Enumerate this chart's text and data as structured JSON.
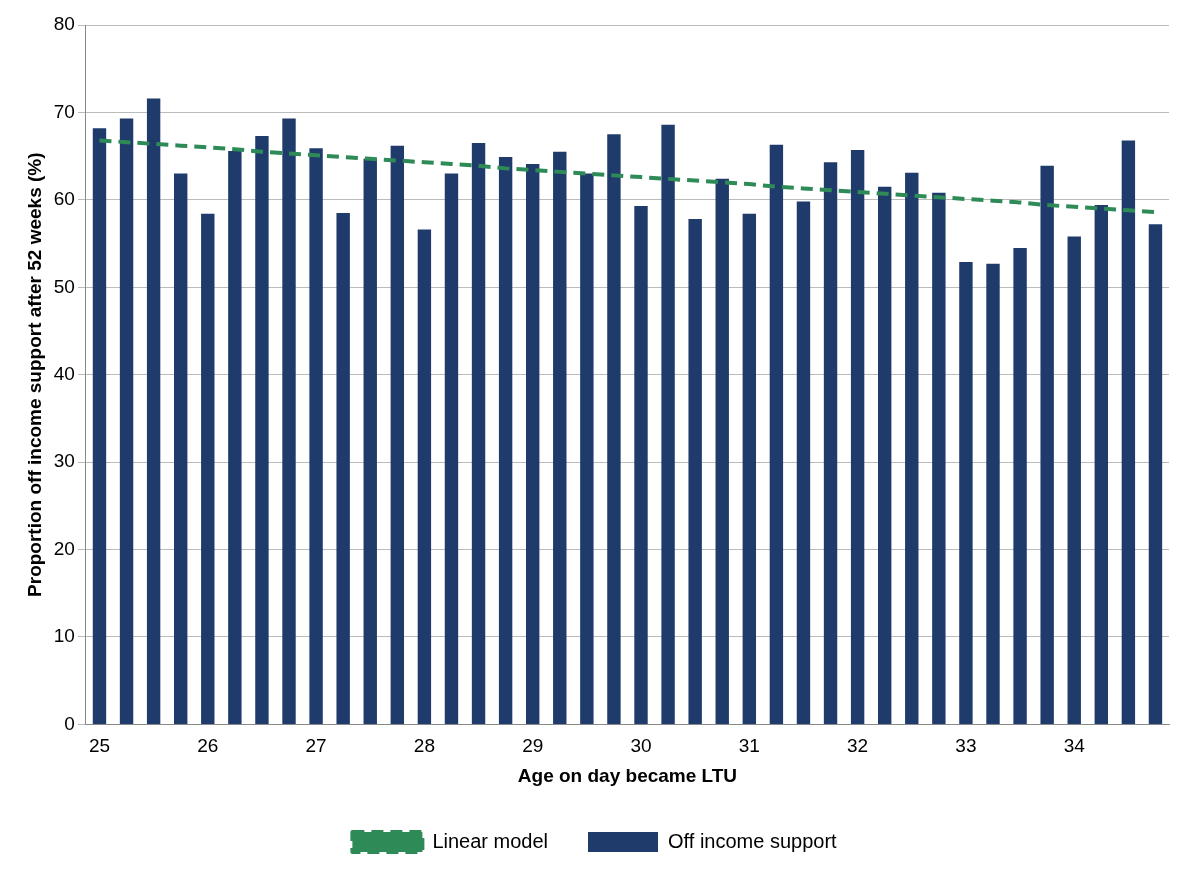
{
  "chart_data": {
    "type": "bar",
    "xlabel": "Age on day became LTU",
    "ylabel": "Proportion off income support after 52 weeks (%)",
    "categories": [
      "25",
      null,
      null,
      null,
      "26",
      null,
      null,
      null,
      "27",
      null,
      null,
      null,
      "28",
      null,
      null,
      null,
      "29",
      null,
      null,
      null,
      "30",
      null,
      null,
      null,
      "31",
      null,
      null,
      null,
      "32",
      null,
      null,
      null,
      "33",
      null,
      null,
      null,
      "34",
      null,
      null,
      null
    ],
    "series": [
      {
        "name": "Off income support",
        "color": "#1f3b6b",
        "values": [
          68.2,
          69.3,
          71.6,
          63.0,
          58.4,
          65.6,
          67.3,
          69.3,
          65.9,
          58.5,
          64.7,
          66.2,
          56.6,
          63.0,
          66.5,
          64.9,
          64.1,
          65.5,
          63.0,
          67.5,
          59.3,
          68.6,
          57.8,
          62.4,
          58.4,
          66.3,
          59.8,
          64.3,
          65.7,
          61.5,
          63.1,
          60.8,
          52.9,
          52.7,
          54.5,
          63.9,
          55.8,
          59.4,
          66.8,
          57.2
        ]
      },
      {
        "name": "Linear model",
        "type": "line",
        "color": "#2e8b57",
        "line_style": "dashed",
        "values": [
          66.8,
          66.6,
          66.4,
          66.2,
          66.0,
          65.8,
          65.5,
          65.3,
          65.1,
          64.9,
          64.7,
          64.5,
          64.3,
          64.1,
          63.9,
          63.6,
          63.4,
          63.2,
          63.0,
          62.8,
          62.6,
          62.4,
          62.2,
          62.0,
          61.8,
          61.5,
          61.3,
          61.1,
          60.9,
          60.7,
          60.5,
          60.3,
          60.1,
          59.9,
          59.7,
          59.4,
          59.2,
          59.0,
          58.8,
          58.6
        ]
      }
    ],
    "ylim": [
      0,
      80
    ],
    "yticks": [
      0,
      10,
      20,
      30,
      40,
      50,
      60,
      70,
      80
    ],
    "grid": "y",
    "legend": "bottom",
    "marker": "none"
  }
}
